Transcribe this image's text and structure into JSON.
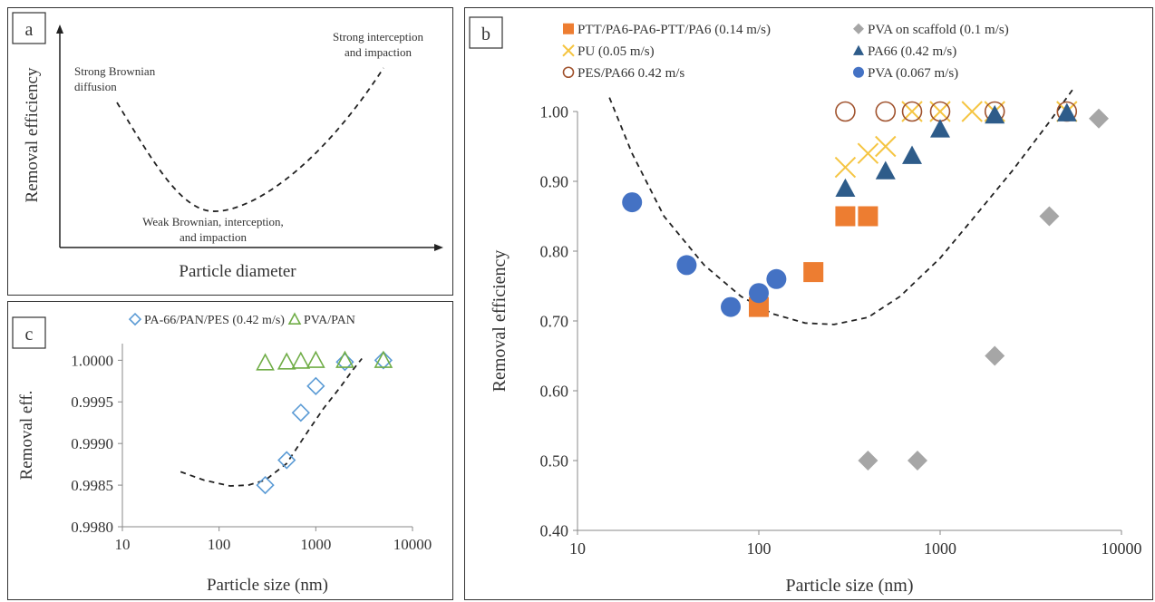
{
  "panels": {
    "a": {
      "letter": "a",
      "xlabel": "Particle diameter",
      "ylabel": "Removal efficiency",
      "annotations": {
        "brownian": [
          "Strong Brownian",
          "diffusion"
        ],
        "interception": [
          "Strong interception",
          "and impaction"
        ],
        "weak": [
          "Weak Brownian, interception,",
          "and impaction"
        ]
      }
    },
    "b": {
      "letter": "b"
    },
    "c": {
      "letter": "c"
    }
  },
  "colors": {
    "orange": "#ED7D31",
    "gold": "#F5C542",
    "brown": "#A0522D",
    "gray": "#A6A6A6",
    "navy": "#2E5C8A",
    "blue": "#4472C4",
    "lightblue": "#5B9BD5",
    "green": "#70AD47"
  },
  "chart_data": [
    {
      "panel": "b",
      "type": "scatter",
      "xlabel": "Particle size (nm)",
      "ylabel": "Removal efficiency",
      "xscale": "log",
      "xlim": [
        10,
        10000
      ],
      "ylim": [
        0.4,
        1.0
      ],
      "x_ticks": [
        "10",
        "100",
        "1000",
        "10000"
      ],
      "y_ticks": [
        "0.40",
        "0.50",
        "0.60",
        "0.70",
        "0.80",
        "0.90",
        "1.00"
      ],
      "series": [
        {
          "name": "PTT/PA6-PA6-PTT/PA6 (0.14 m/s)",
          "marker": "square",
          "color": "#ED7D31",
          "points": [
            [
              100,
              0.72
            ],
            [
              200,
              0.77
            ],
            [
              300,
              0.85
            ],
            [
              400,
              0.85
            ]
          ]
        },
        {
          "name": "PU (0.05 m/s)",
          "marker": "x",
          "color": "#F5C542",
          "points": [
            [
              300,
              0.92
            ],
            [
              400,
              0.94
            ],
            [
              500,
              0.95
            ],
            [
              700,
              1.0
            ],
            [
              1000,
              1.0
            ],
            [
              1500,
              1.0
            ],
            [
              2000,
              1.0
            ],
            [
              5000,
              1.0
            ]
          ]
        },
        {
          "name": "PES/PA66 0.42 m/s",
          "marker": "circle-open",
          "color": "#A0522D",
          "points": [
            [
              300,
              1.0
            ],
            [
              500,
              1.0
            ],
            [
              700,
              1.0
            ],
            [
              1000,
              1.0
            ],
            [
              2000,
              1.0
            ],
            [
              5000,
              1.0
            ]
          ]
        },
        {
          "name": "PVA on scaffold (0.1 m/s)",
          "marker": "diamond",
          "color": "#A6A6A6",
          "points": [
            [
              400,
              0.5
            ],
            [
              750,
              0.5
            ],
            [
              2000,
              0.65
            ],
            [
              4000,
              0.85
            ],
            [
              7500,
              0.99
            ]
          ]
        },
        {
          "name": "PA66 (0.42 m/s)",
          "marker": "triangle",
          "color": "#2E5C8A",
          "points": [
            [
              300,
              0.89
            ],
            [
              500,
              0.915
            ],
            [
              700,
              0.937
            ],
            [
              1000,
              0.975
            ],
            [
              2000,
              0.995
            ],
            [
              5000,
              0.998
            ]
          ]
        },
        {
          "name": "PVA (0.067 m/s)",
          "marker": "circle",
          "color": "#4472C4",
          "points": [
            [
              20,
              0.87
            ],
            [
              40,
              0.78
            ],
            [
              70,
              0.72
            ],
            [
              100,
              0.74
            ],
            [
              125,
              0.76
            ]
          ]
        }
      ],
      "trend_line": [
        [
          15,
          1.02
        ],
        [
          20,
          0.94
        ],
        [
          30,
          0.85
        ],
        [
          50,
          0.78
        ],
        [
          80,
          0.735
        ],
        [
          120,
          0.71
        ],
        [
          180,
          0.697
        ],
        [
          260,
          0.695
        ],
        [
          400,
          0.705
        ],
        [
          600,
          0.735
        ],
        [
          1000,
          0.79
        ],
        [
          1500,
          0.845
        ],
        [
          2500,
          0.915
        ],
        [
          4000,
          0.985
        ],
        [
          5500,
          1.035
        ]
      ]
    },
    {
      "panel": "c",
      "type": "scatter",
      "xlabel": "Particle size (nm)",
      "ylabel": "Removal eff.",
      "xscale": "log",
      "xlim": [
        10,
        10000
      ],
      "ylim": [
        0.998,
        1.0002
      ],
      "x_ticks": [
        "10",
        "100",
        "1000",
        "10000"
      ],
      "y_ticks": [
        "0.9980",
        "0.9985",
        "0.9990",
        "0.9995",
        "1.0000"
      ],
      "series": [
        {
          "name": "PA-66/PAN/PES (0.42 m/s)",
          "marker": "diamond-open",
          "color": "#5B9BD5",
          "points": [
            [
              300,
              0.9985
            ],
            [
              500,
              0.9988
            ],
            [
              700,
              0.99937
            ],
            [
              1000,
              0.99969
            ],
            [
              2000,
              0.99998
            ],
            [
              5000,
              1.0
            ]
          ]
        },
        {
          "name": "PVA/PAN",
          "marker": "triangle-open",
          "color": "#70AD47",
          "points": [
            [
              300,
              0.99997
            ],
            [
              500,
              0.99998
            ],
            [
              700,
              0.99999
            ],
            [
              1000,
              1.0
            ],
            [
              2000,
              1.0
            ],
            [
              5000,
              1.0
            ]
          ]
        }
      ],
      "trend_line": [
        [
          40,
          0.99866
        ],
        [
          70,
          0.99856
        ],
        [
          130,
          0.99849
        ],
        [
          200,
          0.9985
        ],
        [
          300,
          0.99856
        ],
        [
          500,
          0.99876
        ],
        [
          800,
          0.99912
        ],
        [
          1200,
          0.99942
        ],
        [
          1800,
          0.99968
        ],
        [
          2400,
          0.99988
        ],
        [
          3000,
          1.00002
        ]
      ]
    }
  ]
}
